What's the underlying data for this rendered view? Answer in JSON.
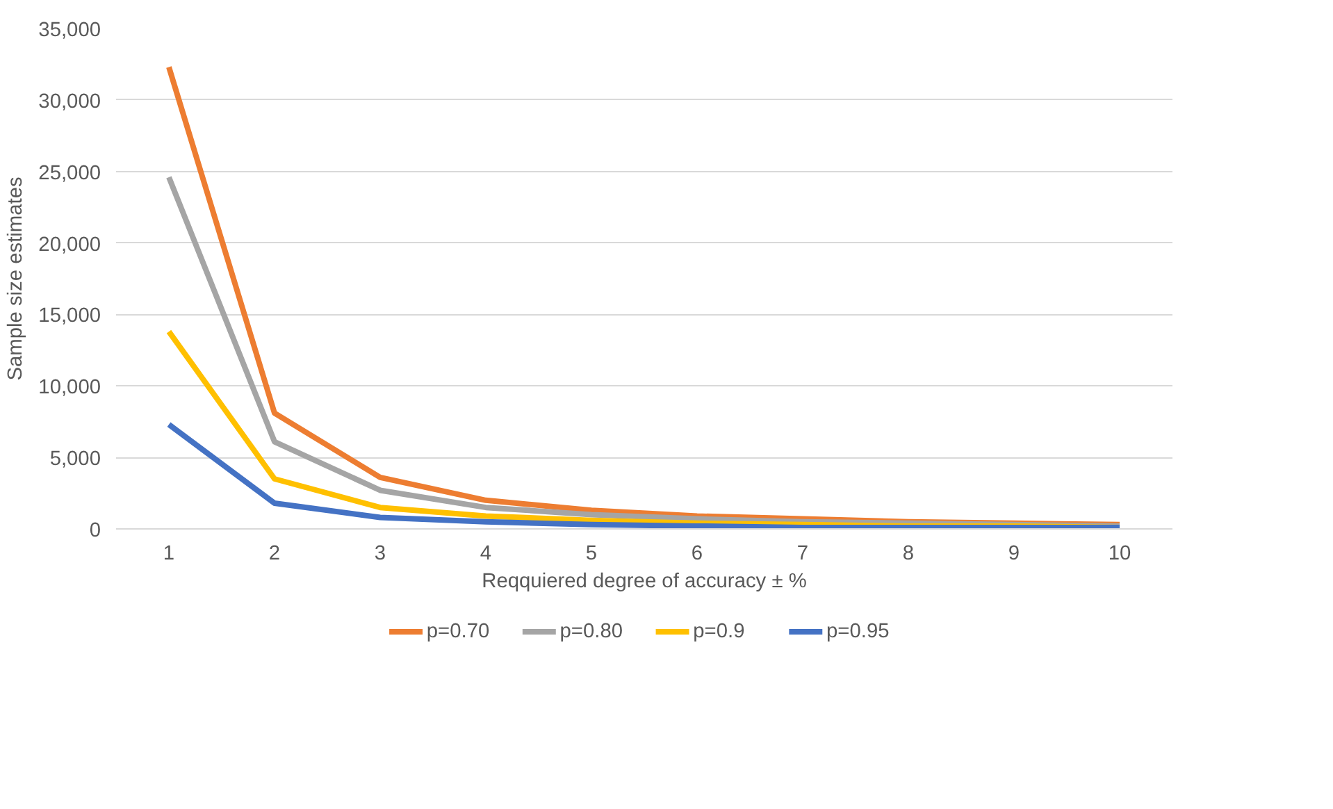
{
  "chart_data": {
    "type": "line",
    "xlabel": "Reqquiered degree of accuracy ± %",
    "ylabel": "Sample size estimates",
    "categories": [
      "1",
      "2",
      "3",
      "4",
      "5",
      "6",
      "7",
      "8",
      "9",
      "10"
    ],
    "series": [
      {
        "name": "p=0.70",
        "color": "#ed7d31",
        "values": [
          32300,
          8100,
          3600,
          2000,
          1300,
          900,
          700,
          500,
          400,
          300
        ]
      },
      {
        "name": "p=0.80",
        "color": "#a5a5a5",
        "values": [
          24600,
          6100,
          2700,
          1500,
          1000,
          700,
          500,
          400,
          300,
          200
        ]
      },
      {
        "name": "p=0.9",
        "color": "#ffc000",
        "values": [
          13800,
          3500,
          1500,
          900,
          600,
          400,
          300,
          200,
          200,
          100
        ]
      },
      {
        "name": "p=0.95",
        "color": "#4472c4",
        "values": [
          7300,
          1800,
          800,
          500,
          300,
          200,
          100,
          100,
          100,
          100
        ]
      }
    ],
    "ylim": [
      0,
      35000
    ],
    "yticks": [
      {
        "value": 0,
        "label": "0"
      },
      {
        "value": 5000,
        "label": "5,000"
      },
      {
        "value": 10000,
        "label": "10,000"
      },
      {
        "value": 15000,
        "label": "15,000"
      },
      {
        "value": 20000,
        "label": "20,000"
      },
      {
        "value": 25000,
        "label": "25,000"
      },
      {
        "value": 30000,
        "label": "30,000"
      },
      {
        "value": 35000,
        "label": "35,000"
      }
    ],
    "grid": "y",
    "legend": "bottom",
    "marker": "none",
    "line_style": "solid"
  }
}
